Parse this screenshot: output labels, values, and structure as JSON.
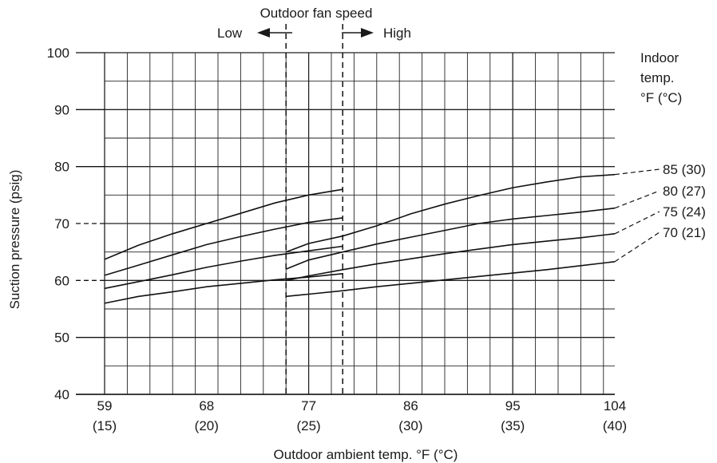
{
  "chart_data": {
    "type": "line",
    "xlabel": "Outdoor ambient temp. °F (°C)",
    "ylabel": "Suction pressure (psig)",
    "xlim": [
      59,
      104
    ],
    "ylim": [
      40,
      100
    ],
    "x_ticks": [
      59,
      68,
      77,
      86,
      95,
      104
    ],
    "x_tick_labels_c": [
      "(15)",
      "(20)",
      "(25)",
      "(30)",
      "(35)",
      "(40)"
    ],
    "y_ticks": [
      40,
      50,
      60,
      70,
      80,
      90,
      100
    ],
    "fan_speed": {
      "title": "Outdoor fan speed",
      "low_label": "Low",
      "high_label": "High",
      "switch_range_x": [
        75,
        80
      ]
    },
    "legend_title": [
      "Indoor",
      "temp.",
      "°F (°C)"
    ],
    "series": [
      {
        "name": "85 (30)",
        "low_speed": [
          [
            59,
            63.7
          ],
          [
            62,
            66.2
          ],
          [
            65,
            68.2
          ],
          [
            68,
            70.0
          ],
          [
            71,
            71.8
          ],
          [
            74,
            73.6
          ],
          [
            77,
            75.0
          ],
          [
            80,
            76.0
          ]
        ],
        "high_speed": [
          [
            75,
            65.0
          ],
          [
            77,
            66.5
          ],
          [
            80,
            67.8
          ],
          [
            83,
            69.6
          ],
          [
            86,
            71.7
          ],
          [
            89,
            73.4
          ],
          [
            92,
            74.9
          ],
          [
            95,
            76.3
          ],
          [
            98,
            77.3
          ],
          [
            101,
            78.2
          ],
          [
            104,
            78.6
          ]
        ]
      },
      {
        "name": "80 (27)",
        "low_speed": [
          [
            59,
            60.9
          ],
          [
            62,
            62.7
          ],
          [
            65,
            64.5
          ],
          [
            68,
            66.3
          ],
          [
            71,
            67.7
          ],
          [
            74,
            69.0
          ],
          [
            77,
            70.2
          ],
          [
            80,
            71.0
          ]
        ],
        "high_speed": [
          [
            75,
            62.0
          ],
          [
            77,
            63.6
          ],
          [
            80,
            65.0
          ],
          [
            83,
            66.4
          ],
          [
            86,
            67.6
          ],
          [
            89,
            68.8
          ],
          [
            92,
            70.0
          ],
          [
            95,
            70.8
          ],
          [
            98,
            71.4
          ],
          [
            101,
            72.0
          ],
          [
            104,
            72.7
          ]
        ]
      },
      {
        "name": "75 (24)",
        "low_speed": [
          [
            59,
            58.6
          ],
          [
            62,
            59.8
          ],
          [
            65,
            61.0
          ],
          [
            68,
            62.3
          ],
          [
            71,
            63.4
          ],
          [
            74,
            64.4
          ],
          [
            77,
            65.2
          ],
          [
            80,
            66.0
          ]
        ],
        "high_speed": [
          [
            75,
            60.0
          ],
          [
            77,
            60.8
          ],
          [
            80,
            61.9
          ],
          [
            83,
            62.9
          ],
          [
            86,
            63.8
          ],
          [
            89,
            64.7
          ],
          [
            92,
            65.5
          ],
          [
            95,
            66.3
          ],
          [
            98,
            66.9
          ],
          [
            101,
            67.5
          ],
          [
            104,
            68.2
          ]
        ]
      },
      {
        "name": "70 (21)",
        "low_speed": [
          [
            59,
            56.0
          ],
          [
            62,
            57.2
          ],
          [
            65,
            58.0
          ],
          [
            68,
            58.9
          ],
          [
            71,
            59.5
          ],
          [
            74,
            60.1
          ],
          [
            77,
            60.6
          ],
          [
            80,
            61.2
          ]
        ],
        "high_speed": [
          [
            75,
            57.2
          ],
          [
            77,
            57.6
          ],
          [
            80,
            58.2
          ],
          [
            83,
            58.9
          ],
          [
            86,
            59.5
          ],
          [
            89,
            60.1
          ],
          [
            92,
            60.7
          ],
          [
            95,
            61.3
          ],
          [
            98,
            61.9
          ],
          [
            101,
            62.6
          ],
          [
            104,
            63.3
          ]
        ]
      }
    ],
    "grid": true
  }
}
